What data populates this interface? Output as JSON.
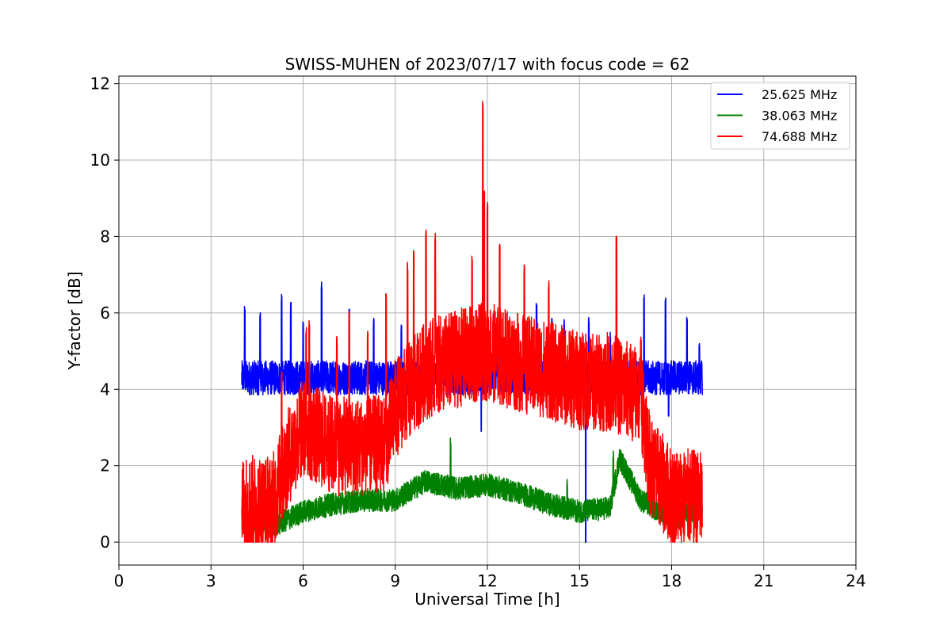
{
  "chart_data": {
    "type": "line",
    "title": "SWISS-MUHEN of 2023/07/17 with focus code = 62",
    "xlabel": "Universal Time [h]",
    "ylabel": "Y-factor [dB]",
    "xlim": [
      0,
      24
    ],
    "ylim": [
      -0.6,
      12.2
    ],
    "xticks": [
      0,
      3,
      6,
      9,
      12,
      15,
      18,
      21,
      24
    ],
    "yticks": [
      0,
      2,
      4,
      6,
      8,
      10,
      12
    ],
    "grid": true,
    "legend_position": "top-right",
    "data_range_x": [
      4.0,
      19.0
    ],
    "series": [
      {
        "name": "25.625 MHz",
        "color": "#0000ff",
        "baseline": 4.3,
        "noise": 0.45,
        "spikes": [
          [
            4.1,
            6.2
          ],
          [
            4.6,
            6.1
          ],
          [
            5.3,
            6.5
          ],
          [
            5.6,
            6.3
          ],
          [
            6.0,
            5.8
          ],
          [
            6.6,
            6.9
          ],
          [
            7.5,
            6.1
          ],
          [
            8.3,
            6.0
          ],
          [
            9.2,
            5.7
          ],
          [
            9.9,
            5.6
          ],
          [
            12.3,
            5.8
          ],
          [
            13.6,
            6.3
          ],
          [
            14.1,
            5.9
          ],
          [
            14.5,
            5.9
          ],
          [
            15.3,
            6.0
          ],
          [
            16.0,
            5.5
          ],
          [
            17.1,
            6.5
          ],
          [
            17.8,
            6.4
          ],
          [
            18.5,
            5.9
          ],
          [
            18.9,
            5.3
          ]
        ],
        "dips": [
          [
            15.2,
            0.0
          ],
          [
            11.8,
            2.9
          ],
          [
            17.9,
            3.3
          ]
        ]
      },
      {
        "name": "38.063 MHz",
        "color": "#008000",
        "profile": [
          [
            4.0,
            0.6
          ],
          [
            5.0,
            0.4
          ],
          [
            6.0,
            0.8
          ],
          [
            7.0,
            1.0
          ],
          [
            8.0,
            1.1
          ],
          [
            9.0,
            1.1
          ],
          [
            10.0,
            1.6
          ],
          [
            11.0,
            1.4
          ],
          [
            12.0,
            1.5
          ],
          [
            13.0,
            1.3
          ],
          [
            14.0,
            1.0
          ],
          [
            15.0,
            0.8
          ],
          [
            16.0,
            0.9
          ],
          [
            16.3,
            2.2
          ],
          [
            17.0,
            1.1
          ],
          [
            18.0,
            0.6
          ],
          [
            19.0,
            0.9
          ]
        ],
        "noise": 0.3,
        "spikes": [
          [
            10.8,
            2.8
          ],
          [
            14.6,
            1.7
          ],
          [
            16.1,
            2.4
          ]
        ]
      },
      {
        "name": "74.688 MHz",
        "color": "#ff0000",
        "profile": [
          [
            4.0,
            1.0
          ],
          [
            5.0,
            1.0
          ],
          [
            5.5,
            2.2
          ],
          [
            6.0,
            3.0
          ],
          [
            7.0,
            2.5
          ],
          [
            8.0,
            2.5
          ],
          [
            8.7,
            2.6
          ],
          [
            9.0,
            3.5
          ],
          [
            10.0,
            4.5
          ],
          [
            11.0,
            4.8
          ],
          [
            12.0,
            5.0
          ],
          [
            13.0,
            4.7
          ],
          [
            14.0,
            4.5
          ],
          [
            15.0,
            4.2
          ],
          [
            16.0,
            4.2
          ],
          [
            17.0,
            3.8
          ],
          [
            17.3,
            2.0
          ],
          [
            18.0,
            1.2
          ],
          [
            19.0,
            1.1
          ]
        ],
        "noise": 1.3,
        "spikes": [
          [
            5.3,
            4.5
          ],
          [
            5.9,
            4.2
          ],
          [
            6.1,
            5.7
          ],
          [
            6.2,
            5.8
          ],
          [
            7.1,
            5.4
          ],
          [
            7.5,
            6.1
          ],
          [
            8.1,
            5.6
          ],
          [
            8.7,
            6.5
          ],
          [
            9.4,
            7.4
          ],
          [
            9.6,
            7.7
          ],
          [
            10.0,
            8.2
          ],
          [
            10.3,
            8.1
          ],
          [
            11.5,
            7.5
          ],
          [
            11.9,
            9.2
          ],
          [
            11.85,
            11.6
          ],
          [
            12.0,
            8.9
          ],
          [
            12.4,
            7.8
          ],
          [
            13.2,
            7.3
          ],
          [
            14.0,
            6.9
          ],
          [
            16.2,
            8.1
          ],
          [
            17.0,
            5.4
          ]
        ]
      }
    ]
  }
}
